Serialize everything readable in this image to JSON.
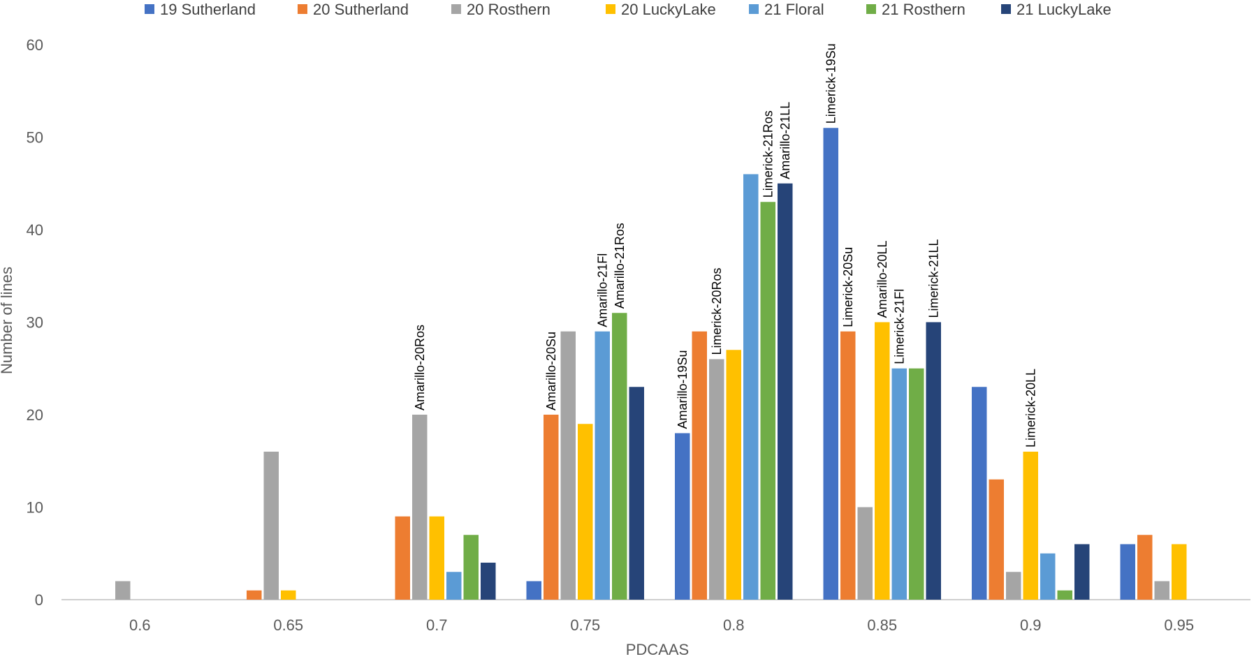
{
  "chart_data": {
    "type": "bar",
    "title": "",
    "xlabel": "PDCAAS",
    "ylabel": "Number of lines",
    "ylim": [
      0,
      60
    ],
    "yticks": [
      0,
      10,
      20,
      30,
      40,
      50,
      60
    ],
    "grid": false,
    "legend_position": "top",
    "categories": [
      "0.6",
      "0.65",
      "0.7",
      "0.75",
      "0.8",
      "0.85",
      "0.9",
      "0.95"
    ],
    "series": [
      {
        "name": "19 Sutherland",
        "color": "#4472C4",
        "values": [
          0,
          0,
          0,
          2,
          18,
          51,
          23,
          6
        ]
      },
      {
        "name": "20 Sutherland",
        "color": "#ED7D31",
        "values": [
          0,
          1,
          9,
          20,
          29,
          29,
          13,
          7
        ]
      },
      {
        "name": "20 Rosthern",
        "color": "#A5A5A5",
        "values": [
          2,
          16,
          20,
          29,
          26,
          10,
          3,
          2
        ]
      },
      {
        "name": "20 LuckyLake",
        "color": "#FFC000",
        "values": [
          0,
          1,
          9,
          19,
          27,
          30,
          16,
          6
        ]
      },
      {
        "name": "21 Floral",
        "color": "#5B9BD5",
        "values": [
          0,
          0,
          3,
          29,
          46,
          25,
          5,
          0
        ]
      },
      {
        "name": "21 Rosthern",
        "color": "#70AD47",
        "values": [
          0,
          0,
          7,
          31,
          43,
          25,
          1,
          0
        ]
      },
      {
        "name": "21 LuckyLake",
        "color": "#264478",
        "values": [
          0,
          0,
          4,
          23,
          45,
          30,
          6,
          0
        ]
      }
    ],
    "annotations": [
      {
        "text": "Amarillo-20Ros",
        "category": 2,
        "series": 2
      },
      {
        "text": "Amarillo-20Su",
        "category": 3,
        "series": 1
      },
      {
        "text": "Amarillo-21Fl",
        "category": 3,
        "series": 4
      },
      {
        "text": "Amarillo-21Ros",
        "category": 3,
        "series": 5
      },
      {
        "text": "Amarillo-19Su",
        "category": 4,
        "series": 0
      },
      {
        "text": "Limerick-20Ros",
        "category": 4,
        "series": 2
      },
      {
        "text": "Limerick-21Ros",
        "category": 4,
        "series": 5
      },
      {
        "text": "Amarillo-21LL",
        "category": 4,
        "series": 6
      },
      {
        "text": "Limerick-19Su",
        "category": 5,
        "series": 0
      },
      {
        "text": "Limerick-20Su",
        "category": 5,
        "series": 1
      },
      {
        "text": "Amarillo-20LL",
        "category": 5,
        "series": 3
      },
      {
        "text": "Limerick-21Fl",
        "category": 5,
        "series": 4
      },
      {
        "text": "Limerick-21LL",
        "category": 5,
        "series": 6
      },
      {
        "text": "Limerick-20LL",
        "category": 6,
        "series": 3
      }
    ]
  }
}
